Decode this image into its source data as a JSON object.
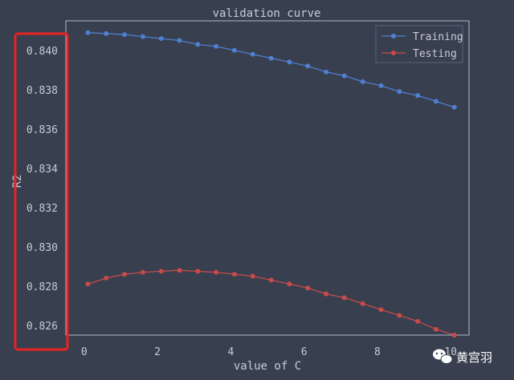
{
  "chart_data": {
    "type": "line",
    "title": "validation curve",
    "xlabel": "value of C",
    "ylabel": "R2",
    "xlim": [
      -0.5,
      10.5
    ],
    "ylim": [
      0.8255,
      0.8415
    ],
    "xticks": [
      0,
      2,
      4,
      6,
      8,
      10
    ],
    "xtick_labels": [
      "0",
      "2",
      "4",
      "6",
      "8",
      "10"
    ],
    "yticks": [
      0.826,
      0.828,
      0.83,
      0.832,
      0.834,
      0.836,
      0.838,
      0.84
    ],
    "ytick_labels": [
      "0.826",
      "0.828",
      "0.830",
      "0.832",
      "0.834",
      "0.836",
      "0.838",
      "0.840"
    ],
    "grid": false,
    "legend_position": "top-right",
    "x": [
      0.1,
      0.6,
      1.1,
      1.6,
      2.1,
      2.6,
      3.1,
      3.6,
      4.1,
      4.6,
      5.1,
      5.6,
      6.1,
      6.6,
      7.1,
      7.6,
      8.1,
      8.6,
      9.1,
      9.6,
      10.1
    ],
    "series": [
      {
        "name": "Training",
        "color": "#4f7fd1",
        "values": [
          0.8409,
          0.84085,
          0.8408,
          0.8407,
          0.8406,
          0.8405,
          0.8403,
          0.8402,
          0.84,
          0.8398,
          0.8396,
          0.8394,
          0.8392,
          0.8389,
          0.8387,
          0.8384,
          0.8382,
          0.8379,
          0.8377,
          0.8374,
          0.8371
        ]
      },
      {
        "name": "Testing",
        "color": "#c84b4b",
        "values": [
          0.8281,
          0.8284,
          0.8286,
          0.8287,
          0.82875,
          0.8288,
          0.82875,
          0.8287,
          0.8286,
          0.8285,
          0.8283,
          0.8281,
          0.8279,
          0.8276,
          0.8274,
          0.8271,
          0.8268,
          0.8265,
          0.8262,
          0.8258,
          0.8255
        ]
      }
    ]
  },
  "watermark": {
    "text": "黄宫羽",
    "icon": "wechat-icon"
  },
  "annotation": {
    "shape": "rectangle",
    "color": "#e8231f"
  }
}
